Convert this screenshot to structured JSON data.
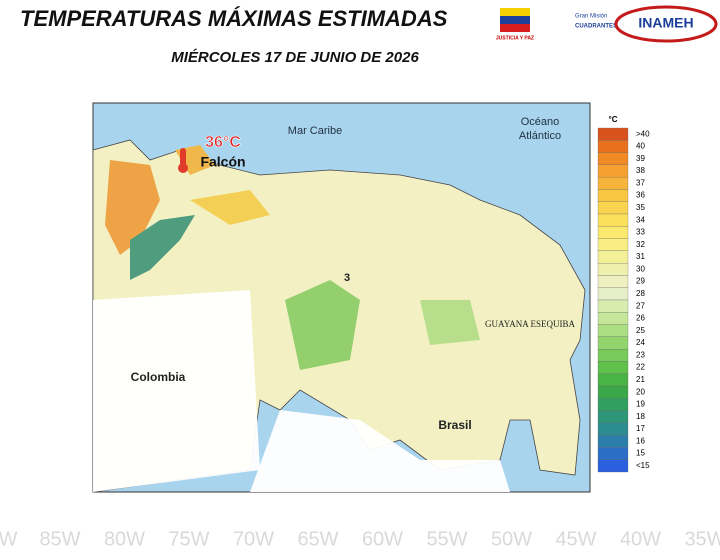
{
  "header": {
    "title": "TEMPERATURAS MÁXIMAS ESTIMADAS",
    "subtitle": "MIÉRCOLES 17 DE JUNIO DE 2026",
    "logos": [
      "JUSTICIA Y PAZ",
      "Gran Misión",
      "CUADRANTES DE PAZ",
      "INAMEH"
    ]
  },
  "map": {
    "labels": {
      "sea": "Mar Caribe",
      "ocean": [
        "Océano",
        "Atlántico"
      ],
      "colombia": "Colombia",
      "brasil": "Brasil",
      "esequibo": "GUAYANA ESEQUIBA",
      "marker": "3"
    },
    "annotation": {
      "temperature": "36°C",
      "state": "Falcón"
    }
  },
  "legend": {
    "unit": "°C",
    "items": [
      {
        "label": ">40",
        "color": "#d9531e"
      },
      {
        "label": "40",
        "color": "#e8701e"
      },
      {
        "label": "39",
        "color": "#f08a24"
      },
      {
        "label": "38",
        "color": "#f5a030"
      },
      {
        "label": "37",
        "color": "#f7b43a"
      },
      {
        "label": "36",
        "color": "#f9c642"
      },
      {
        "label": "35",
        "color": "#fad44e"
      },
      {
        "label": "34",
        "color": "#fbe05c"
      },
      {
        "label": "33",
        "color": "#fbe96e"
      },
      {
        "label": "32",
        "color": "#f8ee82"
      },
      {
        "label": "31",
        "color": "#f4f098"
      },
      {
        "label": "30",
        "color": "#f0f0ad"
      },
      {
        "label": "29",
        "color": "#eef0c0"
      },
      {
        "label": "28",
        "color": "#e6efc8"
      },
      {
        "label": "27",
        "color": "#d8ecb0"
      },
      {
        "label": "26",
        "color": "#c5e79a"
      },
      {
        "label": "25",
        "color": "#acdf82"
      },
      {
        "label": "24",
        "color": "#92d56c"
      },
      {
        "label": "23",
        "color": "#78cb58"
      },
      {
        "label": "22",
        "color": "#5fc04a"
      },
      {
        "label": "21",
        "color": "#48b444"
      },
      {
        "label": "20",
        "color": "#3aa84a"
      },
      {
        "label": "19",
        "color": "#30a060"
      },
      {
        "label": "18",
        "color": "#2d9678"
      },
      {
        "label": "17",
        "color": "#2c8c90"
      },
      {
        "label": "16",
        "color": "#2b7eaa"
      },
      {
        "label": "15",
        "color": "#2a6ec8"
      },
      {
        "label": "<15",
        "color": "#2a5fe0"
      }
    ]
  },
  "background": {
    "longitudes": [
      "W",
      "85W",
      "80W",
      "75W",
      "70W",
      "65W",
      "60W",
      "55W",
      "50W",
      "45W",
      "40W",
      "35W"
    ]
  }
}
